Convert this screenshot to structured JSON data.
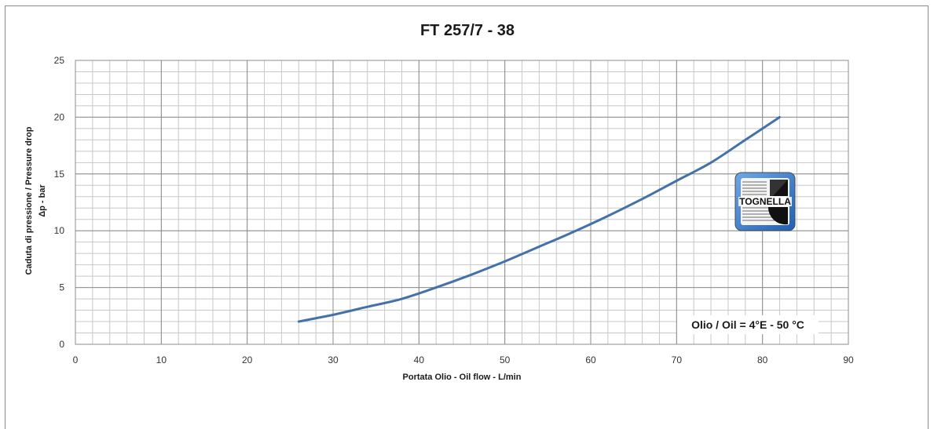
{
  "chart_data": {
    "type": "line",
    "title": "FT 257/7 - 38",
    "xlabel": "Portata Olio - Oil flow -  L/min",
    "ylabel_line1": "Caduta di pressione  / Pressure drop",
    "ylabel_line2": "Δp - bar",
    "xlim": [
      0,
      90
    ],
    "ylim": [
      0,
      25
    ],
    "x_ticks": [
      0,
      10,
      20,
      30,
      40,
      50,
      60,
      70,
      80,
      90
    ],
    "y_ticks": [
      0,
      5,
      10,
      15,
      20,
      25
    ],
    "x_minor_step": 2,
    "y_minor_step": 1,
    "grid": true,
    "series": [
      {
        "color": "#4472a8",
        "x": [
          26,
          30,
          34,
          38,
          42,
          46,
          50,
          54,
          58,
          62,
          66,
          70,
          74,
          78,
          82
        ],
        "y": [
          2.0,
          2.6,
          3.3,
          4.0,
          5.0,
          6.1,
          7.3,
          8.6,
          9.9,
          11.3,
          12.8,
          14.4,
          16.0,
          18.0,
          20.0
        ]
      }
    ],
    "annotation": "Olio / Oil = 4°E - 50 °C",
    "logo_text": "TOGNELLA"
  }
}
